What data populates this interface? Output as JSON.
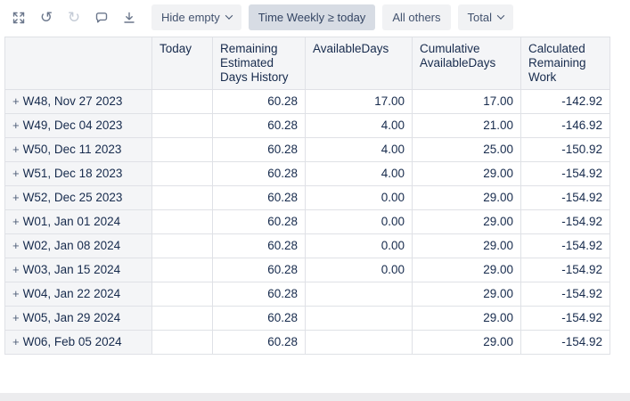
{
  "toolbar": {
    "icons": [
      {
        "name": "expand-icon"
      },
      {
        "name": "undo-icon",
        "glyph": "↺"
      },
      {
        "name": "redo-icon",
        "glyph": "↻",
        "disabled": true
      },
      {
        "name": "comment-icon"
      },
      {
        "name": "download-icon"
      }
    ],
    "buttons": [
      {
        "label": "Hide empty",
        "chevron": true,
        "active": false
      },
      {
        "label": "Time Weekly ≥ today",
        "chevron": false,
        "active": true
      },
      {
        "label": "All others",
        "chevron": false,
        "active": false
      },
      {
        "label": "Total",
        "chevron": true,
        "active": false
      }
    ]
  },
  "table": {
    "expander": "+",
    "headers": [
      "",
      "Today",
      "Remaining Estimated Days History",
      "AvailableDays",
      "Cumulative AvailableDays",
      "Calculated Remaining Work"
    ],
    "rows": [
      {
        "label": "W48, Nov 27 2023",
        "values": [
          "",
          "60.28",
          "17.00",
          "17.00",
          "-142.92"
        ]
      },
      {
        "label": "W49, Dec 04 2023",
        "values": [
          "",
          "60.28",
          "4.00",
          "21.00",
          "-146.92"
        ]
      },
      {
        "label": "W50, Dec 11 2023",
        "values": [
          "",
          "60.28",
          "4.00",
          "25.00",
          "-150.92"
        ]
      },
      {
        "label": "W51, Dec 18 2023",
        "values": [
          "",
          "60.28",
          "4.00",
          "29.00",
          "-154.92"
        ]
      },
      {
        "label": "W52, Dec 25 2023",
        "values": [
          "",
          "60.28",
          "0.00",
          "29.00",
          "-154.92"
        ]
      },
      {
        "label": "W01, Jan 01 2024",
        "values": [
          "",
          "60.28",
          "0.00",
          "29.00",
          "-154.92"
        ]
      },
      {
        "label": "W02, Jan 08 2024",
        "values": [
          "",
          "60.28",
          "0.00",
          "29.00",
          "-154.92"
        ]
      },
      {
        "label": "W03, Jan 15 2024",
        "values": [
          "",
          "60.28",
          "0.00",
          "29.00",
          "-154.92"
        ]
      },
      {
        "label": "W04, Jan 22 2024",
        "values": [
          "",
          "60.28",
          "",
          "29.00",
          "-154.92"
        ]
      },
      {
        "label": "W05, Jan 29 2024",
        "values": [
          "",
          "60.28",
          "",
          "29.00",
          "-154.92"
        ]
      },
      {
        "label": "W06, Feb 05 2024",
        "values": [
          "",
          "60.28",
          "",
          "29.00",
          "-154.92"
        ]
      }
    ]
  },
  "colors": {
    "button_bg": "#f1f2f4",
    "button_active_bg": "#d7dce4",
    "header_bg": "#f4f5f7",
    "border": "#dfe1e6",
    "text": "#172b4d",
    "muted_icon": "#6b778c"
  }
}
